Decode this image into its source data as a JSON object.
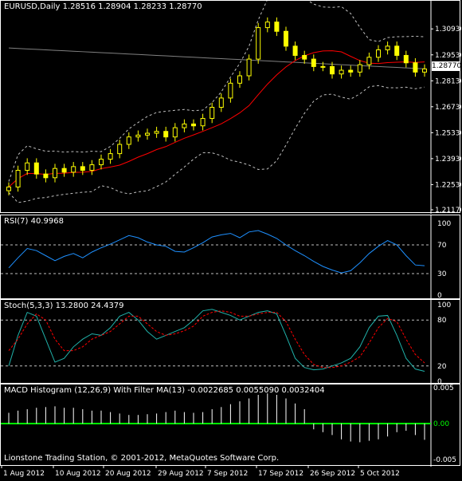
{
  "main_title": "EURUSD,Daily  1.28516 1.28904 1.28233 1.28770",
  "rsi_title": "RSI(7) 40.9968",
  "stoch_title": "Stoch(5,3,3) 13.2800 24.4379",
  "macd_title": "MACD Histogram (12,26,9) With Filter MA(13) -0.0022685 0.0055090 0.0032404",
  "footer": "Lionstone Trading Station, © 2001-2012, MetaQuotes Software Corp.",
  "price_axis": [
    "1.30930",
    "1.29530",
    "1.28130",
    "1.26730",
    "1.25330",
    "1.23930",
    "1.22530",
    "1.21170"
  ],
  "current_price": "1.28770",
  "rsi_axis": [
    "100",
    "70",
    "30",
    "0"
  ],
  "stoch_axis": [
    "100",
    "80",
    "20",
    "0"
  ],
  "macd_axis": [
    "0.005",
    "0.00",
    "-0.005"
  ],
  "date_axis": [
    "1 Aug 2012",
    "10 Aug 2012",
    "20 Aug 2012",
    "29 Aug 2012",
    "7 Sep 2012",
    "17 Sep 2012",
    "26 Sep 2012",
    "5 Oct 2012"
  ],
  "colors": {
    "background": "#000000",
    "candle": "#ffff00",
    "ma_red": "#ff0000",
    "ma_gray": "#808080",
    "bands": "#c0c0c0",
    "rsi": "#1e90ff",
    "stoch_main": "#20b2aa",
    "stoch_signal": "#ff0000",
    "macd_hist": "#ffffff",
    "macd_zero": "#00ff00"
  },
  "chart_data": [
    {
      "type": "candlestick",
      "title": "EURUSD,Daily",
      "ylim": [
        1.2117,
        1.3193
      ],
      "closes": [
        1.224,
        1.233,
        1.237,
        1.231,
        1.229,
        1.234,
        1.232,
        1.235,
        1.233,
        1.236,
        1.239,
        1.242,
        1.247,
        1.251,
        1.252,
        1.253,
        1.254,
        1.251,
        1.256,
        1.258,
        1.257,
        1.261,
        1.267,
        1.272,
        1.28,
        1.284,
        1.293,
        1.31,
        1.313,
        1.308,
        1.3,
        1.295,
        1.293,
        1.289,
        1.289,
        1.285,
        1.287,
        1.286,
        1.29,
        1.294,
        1.298,
        1.3,
        1.295,
        1.291,
        1.286,
        1.2877
      ]
    },
    {
      "type": "line",
      "title": "RSI(7)",
      "ylim": [
        0,
        100
      ],
      "levels": [
        30,
        70
      ],
      "values": [
        38,
        52,
        65,
        62,
        55,
        48,
        54,
        58,
        52,
        60,
        66,
        71,
        77,
        83,
        80,
        74,
        70,
        68,
        61,
        60,
        66,
        73,
        81,
        84,
        86,
        80,
        88,
        90,
        85,
        79,
        70,
        62,
        55,
        47,
        40,
        35,
        31,
        34,
        45,
        58,
        68,
        76,
        70,
        55,
        42,
        41
      ]
    },
    {
      "type": "line",
      "title": "Stoch(5,3,3)",
      "ylim": [
        0,
        100
      ],
      "levels": [
        20,
        80
      ],
      "series": [
        {
          "values": [
            20,
            60,
            90,
            85,
            55,
            25,
            30,
            45,
            55,
            62,
            60,
            70,
            85,
            90,
            80,
            65,
            55,
            60,
            65,
            70,
            80,
            92,
            94,
            90,
            86,
            80,
            85,
            90,
            92,
            88,
            60,
            30,
            18,
            15,
            16,
            20,
            24,
            30,
            45,
            70,
            85,
            86,
            60,
            30,
            16,
            13
          ]
        },
        {
          "values": [
            40,
            55,
            75,
            88,
            80,
            55,
            40,
            40,
            45,
            55,
            60,
            65,
            75,
            85,
            85,
            75,
            65,
            60,
            62,
            66,
            72,
            85,
            90,
            92,
            90,
            85,
            85,
            88,
            90,
            90,
            78,
            55,
            35,
            22,
            18,
            18,
            20,
            25,
            32,
            50,
            70,
            82,
            78,
            55,
            35,
            24
          ]
        }
      ]
    },
    {
      "type": "bar",
      "title": "MACD Histogram (12,26,9) With Filter MA(13)",
      "ylim": [
        -0.005,
        0.005
      ],
      "values": [
        0.0015,
        0.0018,
        0.002,
        0.0022,
        0.0023,
        0.0024,
        0.0022,
        0.0022,
        0.002,
        0.0018,
        0.0018,
        0.0016,
        0.0014,
        0.0012,
        0.0012,
        0.0013,
        0.0014,
        0.0016,
        0.0018,
        0.0016,
        0.0015,
        0.0016,
        0.002,
        0.0023,
        0.0027,
        0.0031,
        0.0035,
        0.004,
        0.0042,
        0.004,
        0.0035,
        0.0028,
        0.002,
        -0.0008,
        -0.0012,
        -0.0016,
        -0.0022,
        -0.0025,
        -0.0026,
        -0.0024,
        -0.0022,
        -0.0018,
        -0.0012,
        -0.001,
        -0.0016,
        -0.0022685
      ]
    }
  ]
}
